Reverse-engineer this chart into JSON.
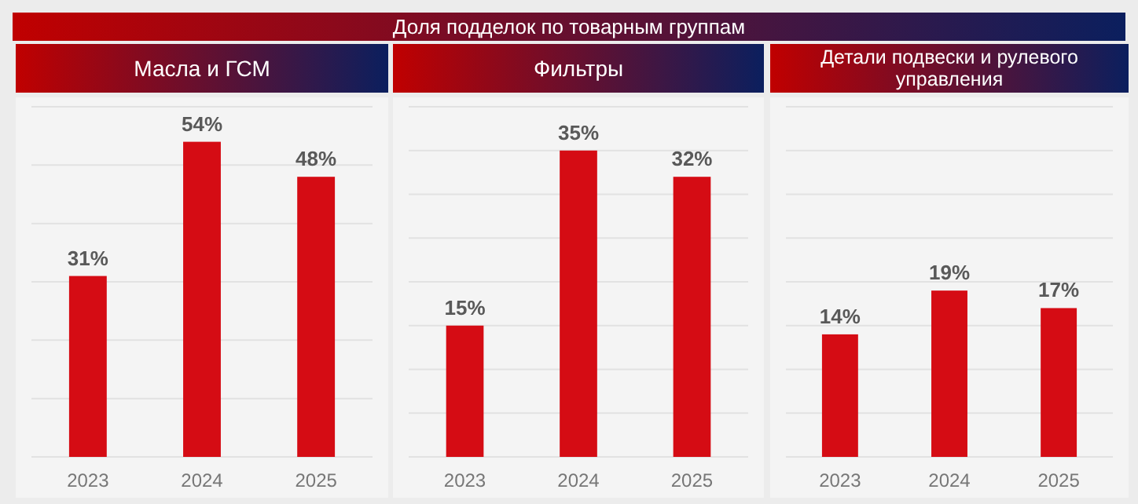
{
  "chart_data": [
    {
      "type": "bar",
      "subtitle": "Масла и ГСМ",
      "categories": [
        "2023",
        "2024",
        "2025"
      ],
      "values": [
        31,
        54,
        48
      ],
      "value_labels": [
        "31%",
        "54%",
        "48%"
      ],
      "color": "#d50c14",
      "ylim": [
        0,
        60
      ],
      "yticks": [
        {
          "value": 0,
          "label": null
        },
        {
          "value": 10,
          "label": null
        },
        {
          "value": 20,
          "label": null
        },
        {
          "value": 30,
          "label": null
        },
        {
          "value": 40,
          "label": null
        },
        {
          "value": 50,
          "label": null
        },
        {
          "value": 60,
          "label": null
        }
      ],
      "grid": "y",
      "tick_labels": "x"
    },
    {
      "type": "bar",
      "title": "Доля подделок по товарным группам",
      "subtitle": "Фильтры",
      "categories": [
        "2023",
        "2024",
        "2025"
      ],
      "values": [
        15,
        35,
        32
      ],
      "value_labels": [
        "15%",
        "35%",
        "32%"
      ],
      "color": "#d50c14",
      "ylim": [
        0,
        40
      ],
      "yticks": [
        {
          "value": 0,
          "label": null
        },
        {
          "value": 5,
          "label": null
        },
        {
          "value": 10,
          "label": null
        },
        {
          "value": 15,
          "label": null
        },
        {
          "value": 20,
          "label": null
        },
        {
          "value": 25,
          "label": null
        },
        {
          "value": 30,
          "label": null
        },
        {
          "value": 35,
          "label": null
        },
        {
          "value": 40,
          "label": null
        }
      ],
      "grid": "y",
      "tick_labels": "x"
    },
    {
      "type": "bar",
      "subtitle": "Детали подвески и рулевого управления",
      "categories": [
        "2023",
        "2024",
        "2025"
      ],
      "values": [
        14,
        19,
        17
      ],
      "value_labels": [
        "14%",
        "19%",
        "17%"
      ],
      "color": "#d50c14",
      "ylim": [
        0,
        40
      ],
      "yticks": [
        {
          "value": 0,
          "label": null
        },
        {
          "value": 5,
          "label": null
        },
        {
          "value": 10,
          "label": null
        },
        {
          "value": 15,
          "label": null
        },
        {
          "value": 20,
          "label": null
        },
        {
          "value": 25,
          "label": null
        },
        {
          "value": 30,
          "label": null
        },
        {
          "value": 35,
          "label": null
        },
        {
          "value": 40,
          "label": null
        }
      ],
      "grid": "y",
      "tick_labels": "x"
    }
  ]
}
